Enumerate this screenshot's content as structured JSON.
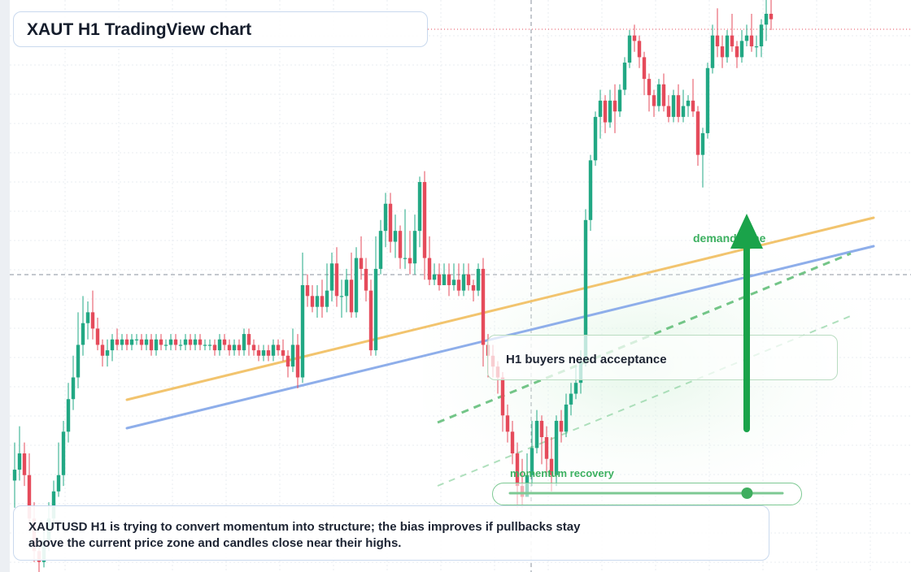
{
  "header": {
    "title": "XAUT H1 TradingView chart"
  },
  "annotations": {
    "callout": "H1 buyers need acceptance",
    "demand_label": "demand zone",
    "momentum_label": "momentum recovery",
    "caption": "XAUTUSD H1 is trying to convert momentum into structure; the bias improves if pullbacks stay above the current price zone and candles close near their highs."
  },
  "colors": {
    "bull": "#22a884",
    "bear": "#e54b5b",
    "trend_orange": "#f2c46e",
    "trend_blue": "#8eaeea",
    "accent_green": "#1aa34a",
    "grid": "#e8ecf2"
  },
  "chart_data": {
    "type": "candlestick",
    "title": "XAUT H1 TradingView chart",
    "xlabel": "",
    "ylabel": "",
    "grid": true,
    "ylim": [
      0,
      100
    ],
    "momentum_gauge": 0.87,
    "candles": [
      [
        17,
        19,
        12,
        24
      ],
      [
        19,
        22,
        17,
        27
      ],
      [
        22,
        18,
        16,
        24
      ],
      [
        18,
        10,
        8,
        22
      ],
      [
        10,
        4,
        2,
        13
      ],
      [
        4,
        2,
        0,
        6
      ],
      [
        2,
        6,
        1,
        8
      ],
      [
        6,
        10,
        4,
        13
      ],
      [
        10,
        15,
        9,
        17
      ],
      [
        15,
        18,
        14,
        24
      ],
      [
        18,
        26,
        16,
        28
      ],
      [
        26,
        32,
        24,
        35
      ],
      [
        32,
        36,
        30,
        40
      ],
      [
        36,
        42,
        34,
        48
      ],
      [
        42,
        46,
        40,
        51
      ],
      [
        46,
        48,
        43,
        50
      ],
      [
        48,
        45,
        43,
        52
      ],
      [
        45,
        42,
        41,
        47
      ],
      [
        42,
        40,
        38,
        43
      ],
      [
        40,
        41,
        38,
        43
      ],
      [
        41,
        43,
        39,
        44
      ],
      [
        43,
        42,
        41,
        45
      ],
      [
        42,
        43,
        41,
        44
      ],
      [
        43,
        42,
        41,
        44
      ],
      [
        42,
        43,
        41,
        44
      ],
      [
        43,
        43,
        42,
        44
      ],
      [
        43,
        42,
        41,
        44
      ],
      [
        42,
        43,
        41,
        44
      ],
      [
        43,
        41,
        40,
        44
      ],
      [
        41,
        43,
        40,
        44
      ],
      [
        43,
        42,
        41,
        44
      ],
      [
        42,
        42,
        41,
        43
      ],
      [
        42,
        43,
        41,
        44
      ],
      [
        43,
        42,
        41,
        44
      ],
      [
        42,
        42,
        41,
        43
      ],
      [
        42,
        43,
        41,
        44
      ],
      [
        43,
        42,
        41,
        44
      ],
      [
        42,
        43,
        41,
        44
      ],
      [
        43,
        42,
        41,
        44
      ],
      [
        42,
        42,
        41,
        43
      ],
      [
        42,
        42,
        41,
        43
      ],
      [
        42,
        41,
        40,
        43
      ],
      [
        41,
        43,
        40,
        44
      ],
      [
        43,
        42,
        41,
        44
      ],
      [
        42,
        41,
        40,
        43
      ],
      [
        41,
        42,
        40,
        43
      ],
      [
        42,
        41,
        40,
        43
      ],
      [
        41,
        44,
        40,
        45
      ],
      [
        44,
        42,
        40,
        45
      ],
      [
        42,
        41,
        40,
        43
      ],
      [
        41,
        40,
        39,
        42
      ],
      [
        40,
        41,
        39,
        42
      ],
      [
        41,
        40,
        39,
        42
      ],
      [
        40,
        42,
        39,
        43
      ],
      [
        42,
        41,
        40,
        43
      ],
      [
        41,
        40,
        39,
        43
      ],
      [
        40,
        38,
        36,
        41
      ],
      [
        38,
        42,
        37,
        45
      ],
      [
        42,
        36,
        34,
        44
      ],
      [
        36,
        53,
        35,
        59
      ],
      [
        53,
        51,
        49,
        55
      ],
      [
        51,
        49,
        48,
        53
      ],
      [
        49,
        51,
        47,
        53
      ],
      [
        51,
        49,
        47,
        54
      ],
      [
        49,
        52,
        48,
        57
      ],
      [
        52,
        57,
        50,
        59
      ],
      [
        57,
        51,
        49,
        60
      ],
      [
        51,
        51,
        47,
        54
      ],
      [
        51,
        54,
        48,
        56
      ],
      [
        54,
        48,
        47,
        59
      ],
      [
        48,
        58,
        47,
        60
      ],
      [
        58,
        56,
        54,
        62
      ],
      [
        56,
        52,
        50,
        58
      ],
      [
        52,
        41,
        40,
        54
      ],
      [
        41,
        56,
        40,
        62
      ],
      [
        56,
        63,
        55,
        65
      ],
      [
        63,
        68,
        60,
        70
      ],
      [
        68,
        61,
        59,
        70
      ],
      [
        61,
        63,
        58,
        66
      ],
      [
        63,
        58,
        56,
        64
      ],
      [
        58,
        58,
        56,
        67
      ],
      [
        58,
        57,
        55,
        63
      ],
      [
        57,
        63,
        55,
        66
      ],
      [
        63,
        72,
        60,
        73
      ],
      [
        72,
        58,
        54,
        74
      ],
      [
        58,
        54,
        53,
        62
      ],
      [
        54,
        55,
        53,
        57
      ],
      [
        55,
        53,
        52,
        57
      ],
      [
        53,
        55,
        53,
        57
      ],
      [
        55,
        53,
        51,
        57
      ],
      [
        53,
        54,
        52,
        57
      ],
      [
        54,
        52,
        51,
        57
      ],
      [
        52,
        55,
        51,
        57
      ],
      [
        55,
        53,
        52,
        57
      ],
      [
        53,
        52,
        50,
        54
      ],
      [
        52,
        56,
        51,
        57
      ],
      [
        56,
        42,
        38,
        58
      ],
      [
        42,
        40,
        36,
        44
      ],
      [
        40,
        38,
        36,
        42
      ],
      [
        38,
        36,
        33,
        39
      ],
      [
        36,
        29,
        26,
        37
      ],
      [
        29,
        26,
        24,
        31
      ],
      [
        26,
        22,
        20,
        28
      ],
      [
        22,
        16,
        12,
        24
      ],
      [
        16,
        14,
        12,
        21
      ],
      [
        14,
        18,
        14,
        22
      ],
      [
        18,
        23,
        16,
        28
      ],
      [
        23,
        28,
        22,
        30
      ],
      [
        28,
        25,
        20,
        29
      ],
      [
        25,
        21,
        18,
        27
      ],
      [
        21,
        18,
        15,
        25
      ],
      [
        18,
        28,
        16,
        29
      ],
      [
        28,
        26,
        24,
        30
      ],
      [
        26,
        31,
        25,
        33
      ],
      [
        31,
        33,
        29,
        35
      ],
      [
        33,
        35,
        32,
        38
      ],
      [
        35,
        39,
        33,
        41
      ],
      [
        39,
        65,
        38,
        67
      ],
      [
        65,
        76,
        63,
        77
      ],
      [
        76,
        84,
        75,
        85
      ],
      [
        84,
        87,
        80,
        89
      ],
      [
        87,
        83,
        81,
        88
      ],
      [
        83,
        87,
        82,
        89
      ],
      [
        87,
        85,
        81,
        90
      ],
      [
        85,
        89,
        84,
        90
      ],
      [
        89,
        94,
        88,
        95
      ],
      [
        94,
        99,
        93,
        100
      ],
      [
        99,
        98,
        96,
        101
      ],
      [
        98,
        95,
        93,
        99
      ],
      [
        95,
        91,
        88,
        96
      ],
      [
        91,
        88,
        85,
        92
      ],
      [
        88,
        86,
        84,
        89
      ],
      [
        86,
        90,
        85,
        91
      ],
      [
        90,
        86,
        85,
        92
      ],
      [
        86,
        84,
        83,
        88
      ],
      [
        84,
        88,
        83,
        89
      ],
      [
        88,
        84,
        83,
        90
      ],
      [
        84,
        86,
        83,
        89
      ],
      [
        86,
        87,
        84,
        88
      ],
      [
        87,
        85,
        84,
        91
      ],
      [
        85,
        77,
        75,
        86
      ],
      [
        77,
        81,
        71,
        82
      ],
      [
        81,
        93,
        80,
        94
      ],
      [
        93,
        99,
        92,
        101
      ],
      [
        99,
        97,
        95,
        104
      ],
      [
        97,
        95,
        93,
        99
      ],
      [
        95,
        99,
        94,
        100
      ],
      [
        99,
        97,
        96,
        103
      ],
      [
        97,
        95,
        93,
        98
      ],
      [
        95,
        98,
        94,
        100
      ],
      [
        98,
        99,
        97,
        101
      ],
      [
        99,
        97,
        96,
        103
      ],
      [
        97,
        97,
        95,
        99
      ],
      [
        97,
        101,
        95,
        102
      ],
      [
        101,
        103,
        98,
        106
      ],
      [
        103,
        102,
        100,
        106
      ]
    ]
  }
}
